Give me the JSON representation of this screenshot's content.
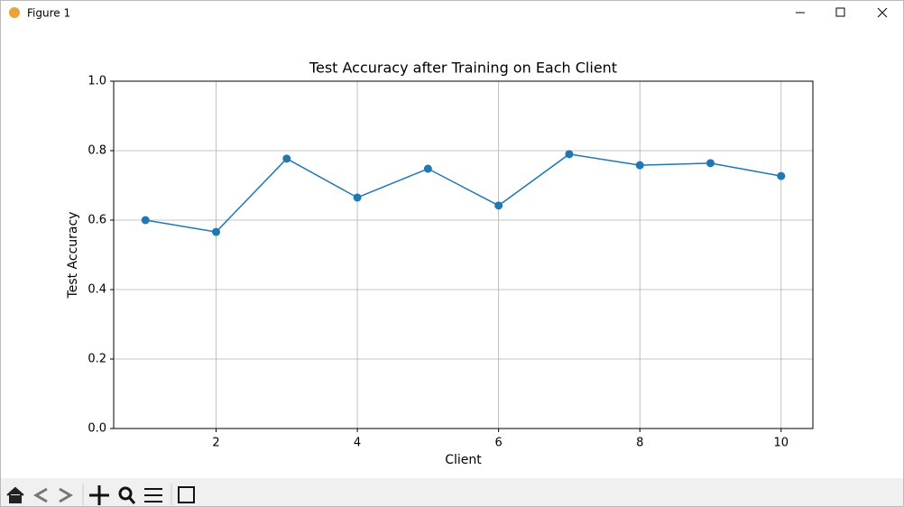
{
  "window": {
    "title": "Figure 1"
  },
  "chart_data": {
    "type": "line",
    "title": "Test Accuracy after Training on Each Client",
    "x_label": "Client",
    "y_label": "Test Accuracy",
    "x": [
      1,
      2,
      3,
      4,
      5,
      6,
      7,
      8,
      9,
      10
    ],
    "series": [
      {
        "name": "Test Accuracy",
        "color": "#1f77b4",
        "values": [
          0.6,
          0.566,
          0.777,
          0.665,
          0.748,
          0.642,
          0.79,
          0.758,
          0.764,
          0.727
        ]
      }
    ],
    "xlim": [
      0.55,
      10.45
    ],
    "xticks": [
      2,
      4,
      6,
      8,
      10
    ],
    "ylim": [
      0,
      1
    ],
    "yticks": [
      {
        "value": 0,
        "label": "0.0"
      },
      0.2,
      0.4,
      0.6,
      0.8,
      {
        "value": 1,
        "label": "1.0"
      }
    ],
    "grid": true,
    "marker": "circle"
  }
}
